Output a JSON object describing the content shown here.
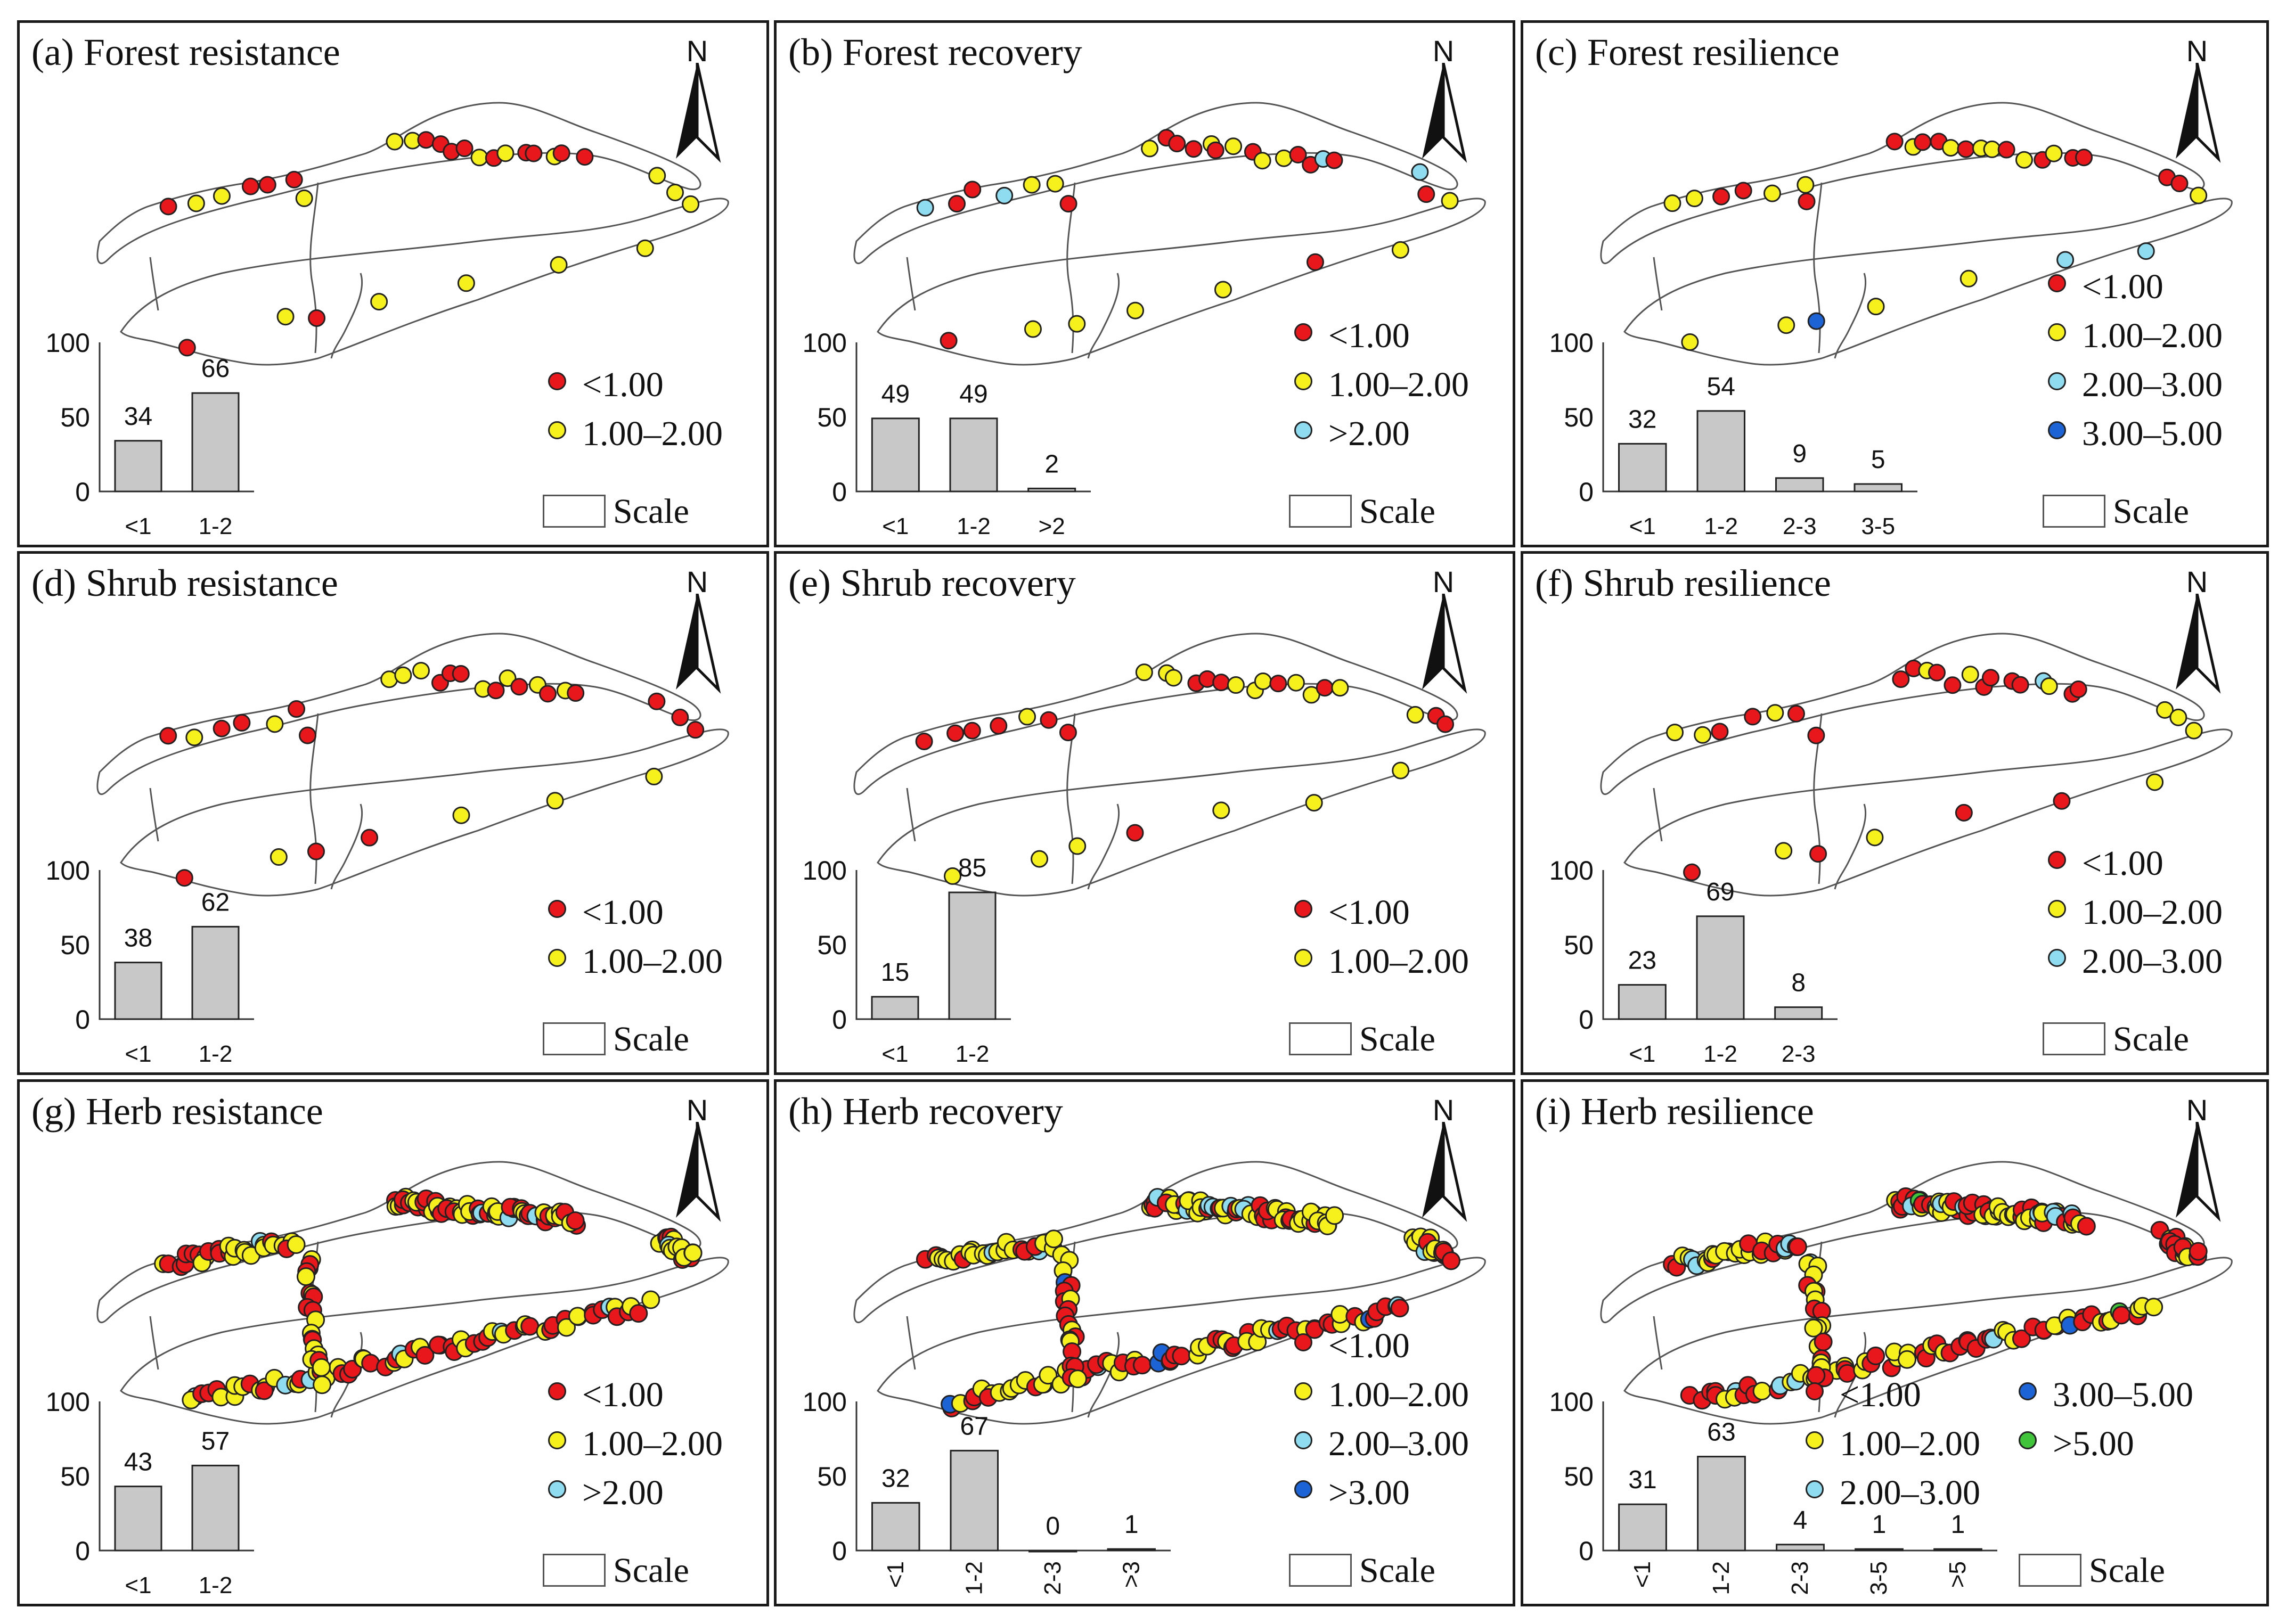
{
  "colors": {
    "c1": "#e8171b",
    "c2": "#f6f11c",
    "c3": "#8fdcf0",
    "c4": "#1c63d6",
    "c5": "#3fc43a"
  },
  "north_label": "N",
  "scale_label": "Scale",
  "panels": [
    {
      "title": "(a) Forest resistance",
      "chart_data": {
        "type": "bar",
        "title": "(a) Forest resistance",
        "categories": [
          "<1",
          "1-2"
        ],
        "values": [
          34,
          66
        ],
        "yticks": [
          "0",
          "50",
          "100"
        ],
        "ylim": [
          0,
          100
        ]
      },
      "legend": [
        {
          "label": "<1.00",
          "color": "#e8171b"
        },
        {
          "label": "1.00–2.00",
          "color": "#f6f11c"
        }
      ]
    },
    {
      "title": "(b) Forest recovery",
      "chart_data": {
        "type": "bar",
        "title": "(b) Forest recovery",
        "categories": [
          "<1",
          "1-2",
          ">2"
        ],
        "values": [
          49,
          49,
          2
        ],
        "yticks": [
          "0",
          "50",
          "100"
        ],
        "ylim": [
          0,
          100
        ]
      },
      "legend": [
        {
          "label": "<1.00",
          "color": "#e8171b"
        },
        {
          "label": "1.00–2.00",
          "color": "#f6f11c"
        },
        {
          "label": ">2.00",
          "color": "#8fdcf0"
        }
      ]
    },
    {
      "title": "(c) Forest resilience",
      "chart_data": {
        "type": "bar",
        "title": "(c) Forest resilience",
        "categories": [
          "<1",
          "1-2",
          "2-3",
          "3-5"
        ],
        "values": [
          32,
          54,
          9,
          5
        ],
        "yticks": [
          "0",
          "50",
          "100"
        ],
        "ylim": [
          0,
          100
        ]
      },
      "legend": [
        {
          "label": "<1.00",
          "color": "#e8171b"
        },
        {
          "label": "1.00–2.00",
          "color": "#f6f11c"
        },
        {
          "label": "2.00–3.00",
          "color": "#8fdcf0"
        },
        {
          "label": "3.00–5.00",
          "color": "#1c63d6"
        }
      ]
    },
    {
      "title": "(d) Shrub resistance",
      "chart_data": {
        "type": "bar",
        "title": "(d) Shrub resistance",
        "categories": [
          "<1",
          "1-2"
        ],
        "values": [
          38,
          62
        ],
        "yticks": [
          "0",
          "50",
          "100"
        ],
        "ylim": [
          0,
          100
        ]
      },
      "legend": [
        {
          "label": "<1.00",
          "color": "#e8171b"
        },
        {
          "label": "1.00–2.00",
          "color": "#f6f11c"
        }
      ]
    },
    {
      "title": "(e) Shrub recovery",
      "chart_data": {
        "type": "bar",
        "title": "(e) Shrub recovery",
        "categories": [
          "<1",
          "1-2"
        ],
        "values": [
          15,
          85
        ],
        "yticks": [
          "0",
          "50",
          "100"
        ],
        "ylim": [
          0,
          100
        ]
      },
      "legend": [
        {
          "label": "<1.00",
          "color": "#e8171b"
        },
        {
          "label": "1.00–2.00",
          "color": "#f6f11c"
        }
      ]
    },
    {
      "title": "(f) Shrub resilience",
      "chart_data": {
        "type": "bar",
        "title": "(f) Shrub resilience",
        "categories": [
          "<1",
          "1-2",
          "2-3"
        ],
        "values": [
          23,
          69,
          8
        ],
        "yticks": [
          "0",
          "50",
          "100"
        ],
        "ylim": [
          0,
          100
        ]
      },
      "legend": [
        {
          "label": "<1.00",
          "color": "#e8171b"
        },
        {
          "label": "1.00–2.00",
          "color": "#f6f11c"
        },
        {
          "label": "2.00–3.00",
          "color": "#8fdcf0"
        }
      ]
    },
    {
      "title": "(g) Herb resistance",
      "chart_data": {
        "type": "bar",
        "title": "(g) Herb resistance",
        "categories": [
          "<1",
          "1-2"
        ],
        "values": [
          43,
          57
        ],
        "yticks": [
          "0",
          "50",
          "100"
        ],
        "ylim": [
          0,
          100
        ]
      },
      "legend": [
        {
          "label": "<1.00",
          "color": "#e8171b"
        },
        {
          "label": "1.00–2.00",
          "color": "#f6f11c"
        },
        {
          "label": ">2.00",
          "color": "#8fdcf0"
        }
      ]
    },
    {
      "title": "(h) Herb recovery",
      "chart_data": {
        "type": "bar",
        "title": "(h) Herb recovery",
        "categories": [
          "<1",
          "1-2",
          "2-3",
          ">3"
        ],
        "values": [
          32,
          67,
          0,
          1
        ],
        "yticks": [
          "0",
          "50",
          "100"
        ],
        "ylim": [
          0,
          100
        ]
      },
      "legend": [
        {
          "label": "<1.00",
          "color": "#e8171b"
        },
        {
          "label": "1.00–2.00",
          "color": "#f6f11c"
        },
        {
          "label": "2.00–3.00",
          "color": "#8fdcf0"
        },
        {
          "label": ">3.00",
          "color": "#1c63d6"
        }
      ]
    },
    {
      "title": "(i) Herb resilience",
      "chart_data": {
        "type": "bar",
        "title": "(i) Herb resilience",
        "categories": [
          "<1",
          "1-2",
          "2-3",
          "3-5",
          ">5"
        ],
        "values": [
          31,
          63,
          4,
          1,
          1
        ],
        "yticks": [
          "0",
          "50",
          "100"
        ],
        "ylim": [
          0,
          100
        ]
      },
      "legend": [
        {
          "label": "<1.00",
          "color": "#e8171b"
        },
        {
          "label": "1.00–2.00",
          "color": "#f6f11c"
        },
        {
          "label": "2.00–3.00",
          "color": "#8fdcf0"
        },
        {
          "label": "3.00–5.00",
          "color": "#1c63d6"
        },
        {
          "label": ">5.00",
          "color": "#3fc43a"
        }
      ]
    }
  ]
}
